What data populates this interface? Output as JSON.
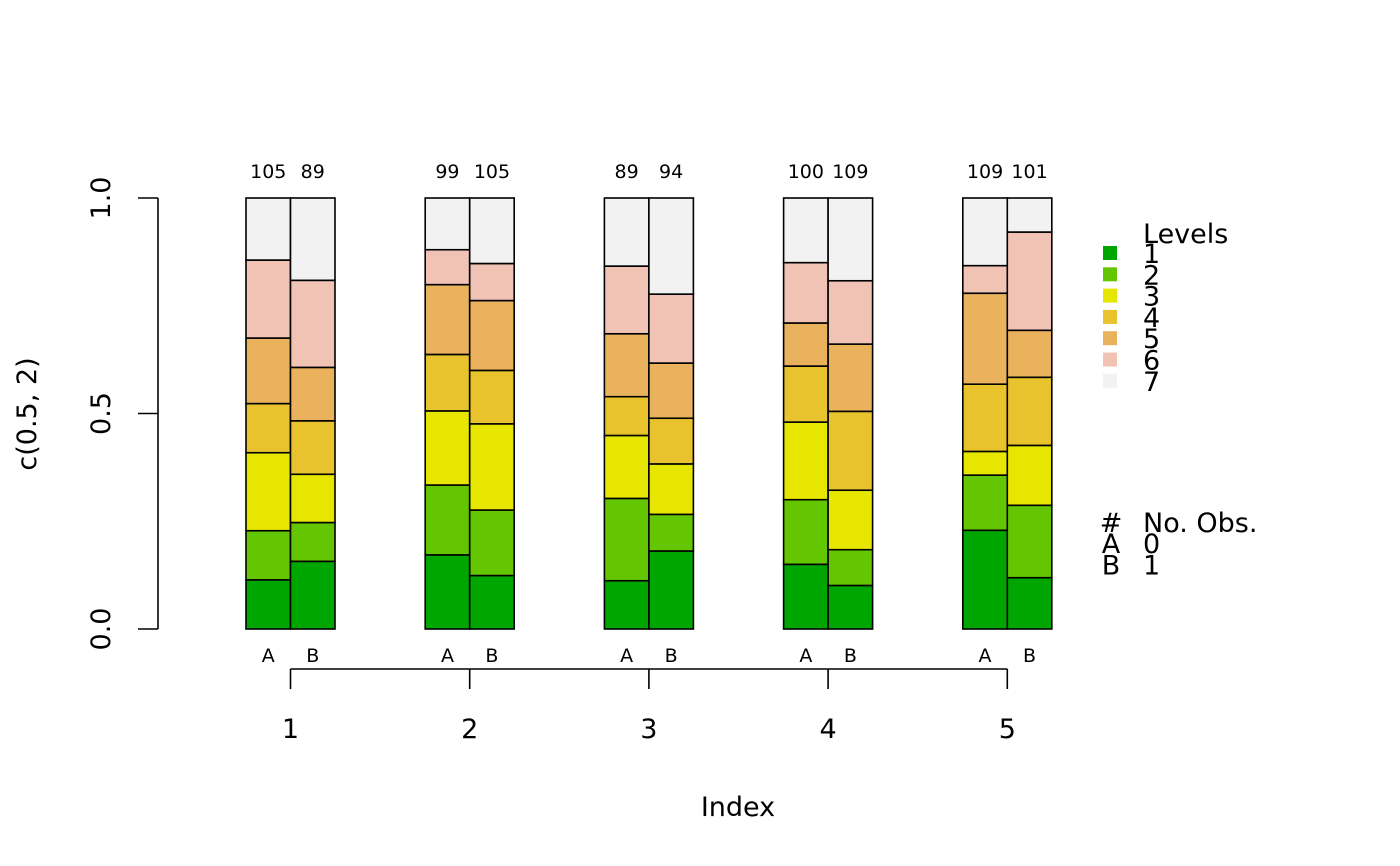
{
  "chart_data": {
    "type": "bar",
    "stacked": true,
    "ylabel": "c(0.5, 2)",
    "xlabel": "Index",
    "ylim": [
      0,
      1
    ],
    "y_ticks": [
      "0.0",
      "0.5",
      "1.0"
    ],
    "groups": [
      "1",
      "2",
      "3",
      "4",
      "5"
    ],
    "subgroups": [
      "A",
      "B"
    ],
    "legend_levels_title": "Levels",
    "levels": [
      "1",
      "2",
      "3",
      "4",
      "5",
      "6",
      "7"
    ],
    "level_colors": [
      "#00A600",
      "#63C600",
      "#E6E600",
      "#E8C32E",
      "#EBB25E",
      "#F0C3B5",
      "#F2F2F2"
    ],
    "legend_obs_title": "No. Obs.",
    "legend_obs_symbol": "#",
    "legend_obs_rows": [
      {
        "symbol": "A",
        "value": "0"
      },
      {
        "symbol": "B",
        "value": "1"
      }
    ],
    "count_color": "#2297E6",
    "bars": [
      {
        "group": "1",
        "sub": "A",
        "count": "105",
        "proportions": [
          0.114,
          0.114,
          0.181,
          0.114,
          0.152,
          0.181,
          0.144
        ]
      },
      {
        "group": "1",
        "sub": "B",
        "count": "89",
        "proportions": [
          0.157,
          0.09,
          0.112,
          0.124,
          0.124,
          0.202,
          0.191
        ]
      },
      {
        "group": "2",
        "sub": "A",
        "count": "99",
        "proportions": [
          0.172,
          0.162,
          0.172,
          0.131,
          0.162,
          0.081,
          0.12
        ]
      },
      {
        "group": "2",
        "sub": "B",
        "count": "105",
        "proportions": [
          0.124,
          0.152,
          0.2,
          0.124,
          0.162,
          0.086,
          0.152
        ]
      },
      {
        "group": "3",
        "sub": "A",
        "count": "89",
        "proportions": [
          0.112,
          0.191,
          0.146,
          0.09,
          0.146,
          0.157,
          0.158
        ]
      },
      {
        "group": "3",
        "sub": "B",
        "count": "94",
        "proportions": [
          0.181,
          0.085,
          0.117,
          0.106,
          0.128,
          0.16,
          0.223
        ]
      },
      {
        "group": "4",
        "sub": "A",
        "count": "100",
        "proportions": [
          0.15,
          0.15,
          0.18,
          0.13,
          0.1,
          0.14,
          0.15
        ]
      },
      {
        "group": "4",
        "sub": "B",
        "count": "109",
        "proportions": [
          0.101,
          0.083,
          0.138,
          0.183,
          0.156,
          0.147,
          0.192
        ]
      },
      {
        "group": "5",
        "sub": "A",
        "count": "109",
        "proportions": [
          0.229,
          0.128,
          0.055,
          0.156,
          0.211,
          0.064,
          0.157
        ]
      },
      {
        "group": "5",
        "sub": "B",
        "count": "101",
        "proportions": [
          0.119,
          0.168,
          0.139,
          0.158,
          0.109,
          0.228,
          0.079
        ]
      }
    ]
  }
}
